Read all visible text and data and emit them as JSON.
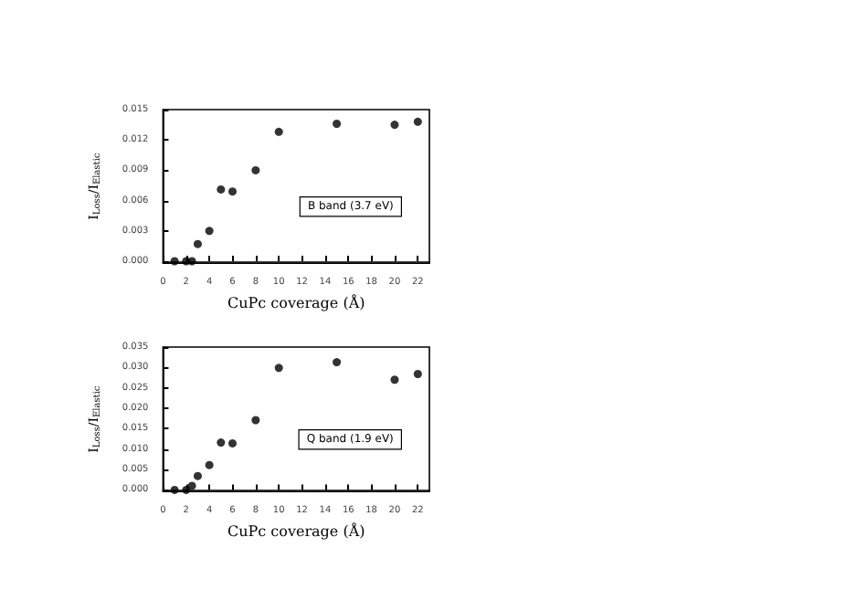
{
  "chart_data": [
    {
      "type": "scatter",
      "xlabel": "CuPc coverage (Å)",
      "ylabel": "I$_{Loss}$/I$_{Elastic}$",
      "annotations": [
        "B band (3.7 eV)"
      ],
      "x": [
        1,
        2,
        2.5,
        3,
        4,
        5,
        6,
        8,
        10,
        15,
        20,
        22
      ],
      "series": [
        {
          "color": "#000000",
          "values": [
            0,
            0,
            0,
            0.0017,
            0.003,
            0.0071,
            0.0069,
            0.009,
            0.0128,
            0.0136,
            0.0135,
            0.0138
          ]
        }
      ],
      "xlim": [
        0,
        23
      ],
      "xticks": [
        0,
        2,
        4,
        6,
        8,
        10,
        12,
        14,
        16,
        18,
        20,
        22
      ],
      "ylim": [
        -0.0002,
        0.015
      ],
      "yticks": [
        {
          "value": 0,
          "label": "0.000"
        },
        {
          "value": 0.003,
          "label": "0.003"
        },
        {
          "value": 0.006,
          "label": "0.006"
        },
        {
          "value": 0.009,
          "label": "0.009"
        },
        {
          "value": 0.012,
          "label": "0.012"
        },
        {
          "value": 0.015,
          "label": "0.015"
        }
      ],
      "grid": false,
      "marker": "circle"
    },
    {
      "type": "scatter",
      "xlabel": "CuPc coverage (Å)",
      "ylabel": "I$_{Loss}$/I$_{Elastic}$",
      "annotations": [
        "Q band (1.9 eV)"
      ],
      "x": [
        1,
        2,
        2.5,
        3,
        4,
        5,
        6,
        8,
        10,
        15,
        20,
        22
      ],
      "series": [
        {
          "color": "#000000",
          "values": [
            0,
            0,
            0.001,
            0.0034,
            0.0061,
            0.0116,
            0.0114,
            0.0171,
            0.0299,
            0.0313,
            0.027,
            0.0284
          ]
        }
      ],
      "xlim": [
        0,
        23
      ],
      "xticks": [
        0,
        2,
        4,
        6,
        8,
        10,
        12,
        14,
        16,
        18,
        20,
        22
      ],
      "ylim": [
        -0.0004,
        0.035
      ],
      "yticks": [
        {
          "value": 0,
          "label": "0.000"
        },
        {
          "value": 0.005,
          "label": "0.005"
        },
        {
          "value": 0.01,
          "label": "0.010"
        },
        {
          "value": 0.015,
          "label": "0.015"
        },
        {
          "value": 0.02,
          "label": "0.020"
        },
        {
          "value": 0.025,
          "label": "0.025"
        },
        {
          "value": 0.03,
          "label": "0.030"
        },
        {
          "value": 0.035,
          "label": "0.035"
        }
      ],
      "grid": false,
      "marker": "circle"
    }
  ]
}
